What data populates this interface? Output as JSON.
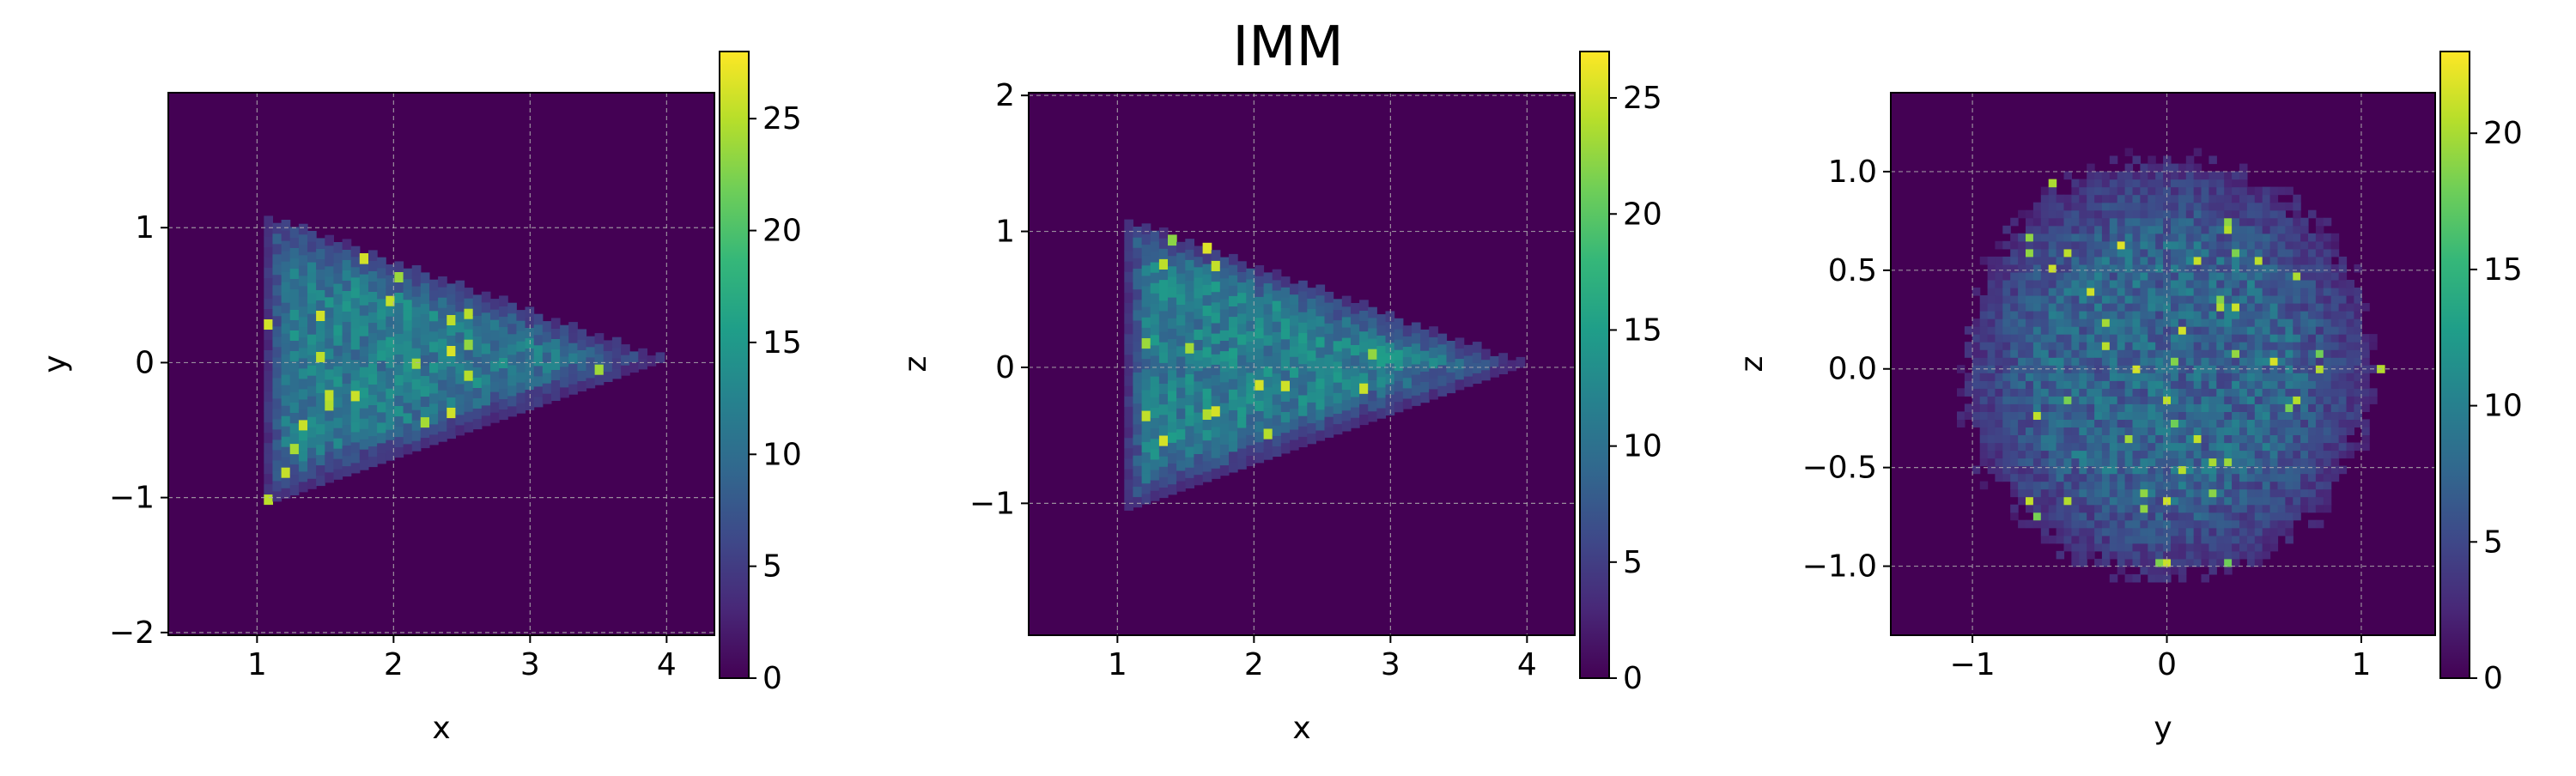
{
  "figure": {
    "title": "IMM"
  },
  "colormap": {
    "name": "viridis",
    "stops": [
      "#440154",
      "#482878",
      "#3e4989",
      "#31688e",
      "#26828e",
      "#1f9e89",
      "#35b779",
      "#6ece58",
      "#b5de2b",
      "#fde725"
    ]
  },
  "chart_data": [
    {
      "type": "heatmap",
      "title": "",
      "xlabel": "x",
      "ylabel": "y",
      "xlim": [
        0.35,
        4.35
      ],
      "ylim": [
        -2.02,
        2.0
      ],
      "xticks": [
        1,
        2,
        3,
        4
      ],
      "xtick_labels": [
        "1",
        "2",
        "3",
        "4"
      ],
      "yticks": [
        -2,
        -1,
        0,
        1
      ],
      "ytick_labels": [
        "−2",
        "−1",
        "0",
        "1"
      ],
      "grid": true,
      "colorbar": {
        "min": 0,
        "max": 28,
        "ticks": [
          0,
          5,
          10,
          15,
          20,
          25
        ],
        "tick_labels": [
          "0",
          "5",
          "10",
          "15",
          "20",
          "25"
        ]
      },
      "density": {
        "shape": "triangle",
        "left": 1.05,
        "right": 3.92,
        "apex": 0.0,
        "half_height": 1.05,
        "bins": 50,
        "typical_count": 15,
        "max_count": 27
      }
    },
    {
      "type": "heatmap",
      "title": "",
      "xlabel": "x",
      "ylabel": "z",
      "xlim": [
        0.35,
        4.35
      ],
      "ylim": [
        -1.97,
        2.02
      ],
      "xticks": [
        1,
        2,
        3,
        4
      ],
      "xtick_labels": [
        "1",
        "2",
        "3",
        "4"
      ],
      "yticks": [
        -1,
        0,
        1,
        2
      ],
      "ytick_labels": [
        "−1",
        "0",
        "1",
        "2"
      ],
      "grid": true,
      "colorbar": {
        "min": 0,
        "max": 27,
        "ticks": [
          0,
          5,
          10,
          15,
          20,
          25
        ],
        "tick_labels": [
          "0",
          "5",
          "10",
          "15",
          "20",
          "25"
        ]
      },
      "density": {
        "shape": "triangle",
        "left": 1.05,
        "right": 3.92,
        "apex": 0.0,
        "half_height": 1.05,
        "bins": 50,
        "typical_count": 15,
        "max_count": 26
      }
    },
    {
      "type": "heatmap",
      "title": "",
      "xlabel": "y",
      "ylabel": "z",
      "xlim": [
        -1.42,
        1.38
      ],
      "ylim": [
        -1.35,
        1.4
      ],
      "xticks": [
        -1,
        0,
        1
      ],
      "xtick_labels": [
        "−1",
        "0",
        "1"
      ],
      "yticks": [
        -1.0,
        -0.5,
        0.0,
        0.5,
        1.0
      ],
      "ytick_labels": [
        "−1.0",
        "−0.5",
        "0.0",
        "0.5",
        "1.0"
      ],
      "grid": true,
      "colorbar": {
        "min": 0,
        "max": 23,
        "ticks": [
          0,
          5,
          10,
          15,
          20
        ],
        "tick_labels": [
          "0",
          "5",
          "10",
          "15",
          "20"
        ]
      },
      "density": {
        "shape": "disc",
        "center": [
          0.0,
          0.0
        ],
        "radius": 1.08,
        "bins": 55,
        "typical_count": 10,
        "max_count": 22
      }
    }
  ]
}
